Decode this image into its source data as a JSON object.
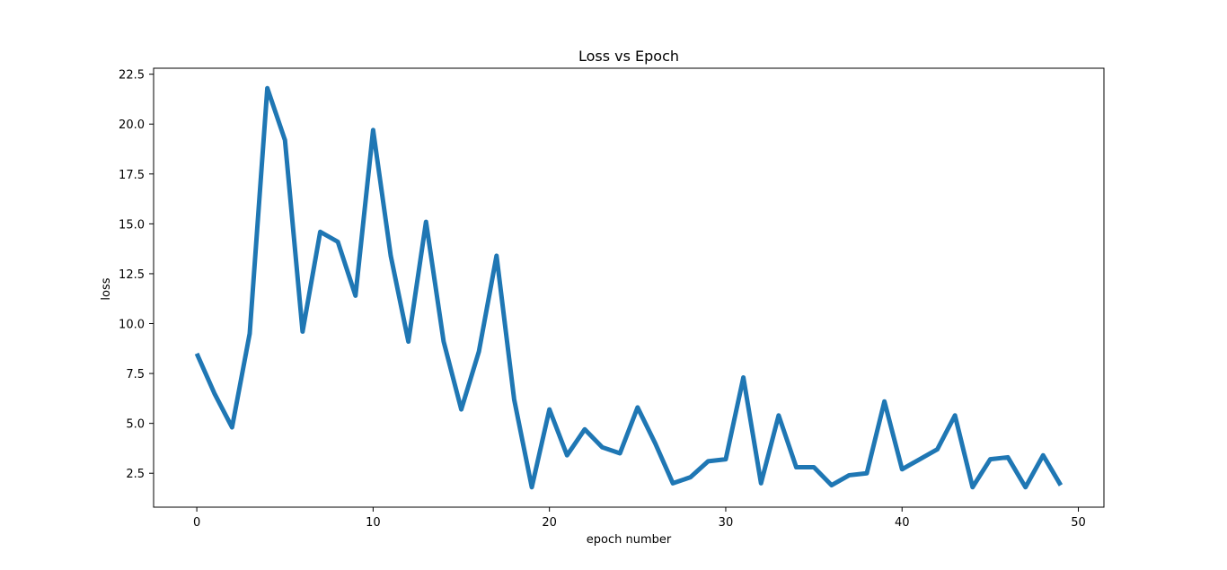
{
  "chart_data": {
    "type": "line",
    "title": "Loss vs Epoch",
    "xlabel": "epoch number",
    "ylabel": "loss",
    "xlim": [
      -2.45,
      51.45
    ],
    "ylim": [
      0.8,
      22.8
    ],
    "xticks": [
      0,
      10,
      20,
      30,
      40,
      50
    ],
    "yticks": [
      2.5,
      5.0,
      7.5,
      10.0,
      12.5,
      15.0,
      17.5,
      20.0,
      22.5
    ],
    "xtick_labels": [
      "0",
      "10",
      "20",
      "30",
      "40",
      "50"
    ],
    "ytick_labels": [
      "2.5",
      "5.0",
      "7.5",
      "10.0",
      "12.5",
      "15.0",
      "17.5",
      "20.0",
      "22.5"
    ],
    "grid": false,
    "color": "#1f77b4",
    "series": [
      {
        "x": [
          0,
          1,
          2,
          3,
          4,
          5,
          6,
          7,
          8,
          9,
          10,
          11,
          12,
          13,
          14,
          15,
          16,
          17,
          18,
          19,
          20,
          21,
          22,
          23,
          24,
          25,
          26,
          27,
          28,
          29,
          30,
          31,
          32,
          33,
          34,
          35,
          36,
          37,
          38,
          39,
          40,
          41,
          42,
          43,
          44,
          45,
          46,
          47,
          48,
          49
        ],
        "values": [
          8.5,
          6.5,
          4.8,
          9.5,
          21.8,
          19.2,
          9.6,
          14.6,
          14.1,
          11.4,
          19.7,
          13.4,
          9.1,
          15.1,
          9.1,
          5.7,
          8.6,
          13.4,
          6.2,
          1.8,
          5.7,
          3.4,
          4.7,
          3.8,
          3.5,
          5.8,
          4.0,
          2.0,
          2.3,
          3.1,
          3.2,
          7.3,
          2.0,
          5.4,
          2.8,
          2.8,
          1.9,
          2.4,
          2.5,
          6.1,
          2.7,
          3.2,
          3.7,
          5.4,
          1.8,
          3.2,
          3.3,
          1.8,
          3.4,
          1.9
        ]
      }
    ]
  }
}
